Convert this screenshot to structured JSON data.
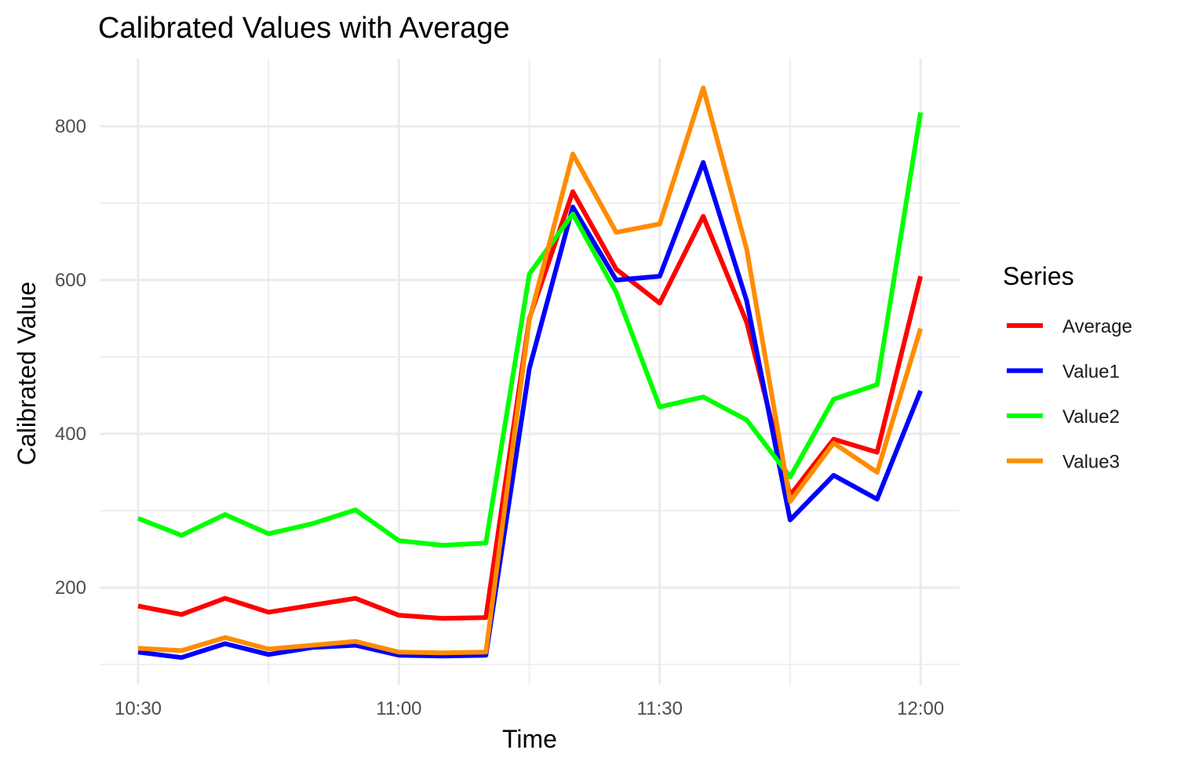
{
  "chart_data": {
    "type": "line",
    "title": "Calibrated Values with Average",
    "xlabel": "Time",
    "ylabel": "Calibrated Value",
    "x": [
      "10:30",
      "10:35",
      "10:40",
      "10:45",
      "10:50",
      "10:55",
      "11:00",
      "11:05",
      "11:10",
      "11:15",
      "11:20",
      "11:25",
      "11:30",
      "11:35",
      "11:40",
      "11:45",
      "11:50",
      "11:55",
      "12:00"
    ],
    "x_ticks": [
      "10:30",
      "11:00",
      "11:30",
      "12:00"
    ],
    "y_ticks": [
      200,
      400,
      600,
      800
    ],
    "ylim": [
      80,
      890
    ],
    "grid": true,
    "legend": {
      "title": "Series",
      "position": "right"
    },
    "series": [
      {
        "name": "Average",
        "color": "#ff0000",
        "values": [
          176,
          165,
          186,
          168,
          177,
          186,
          164,
          160,
          161,
          550,
          715,
          614,
          570,
          683,
          545,
          320,
          393,
          376,
          605
        ]
      },
      {
        "name": "Value1",
        "color": "#0000ff",
        "values": [
          116,
          109,
          127,
          113,
          122,
          125,
          112,
          111,
          112,
          485,
          695,
          600,
          605,
          753,
          573,
          288,
          346,
          315,
          456
        ]
      },
      {
        "name": "Value2",
        "color": "#00ff00",
        "values": [
          290,
          268,
          295,
          270,
          283,
          301,
          261,
          255,
          258,
          608,
          686,
          584,
          435,
          448,
          418,
          344,
          445,
          464,
          818
        ]
      },
      {
        "name": "Value3",
        "color": "#ff8c00",
        "values": [
          121,
          118,
          135,
          120,
          125,
          130,
          116,
          115,
          116,
          548,
          764,
          662,
          673,
          850,
          640,
          312,
          388,
          350,
          537
        ]
      }
    ]
  }
}
